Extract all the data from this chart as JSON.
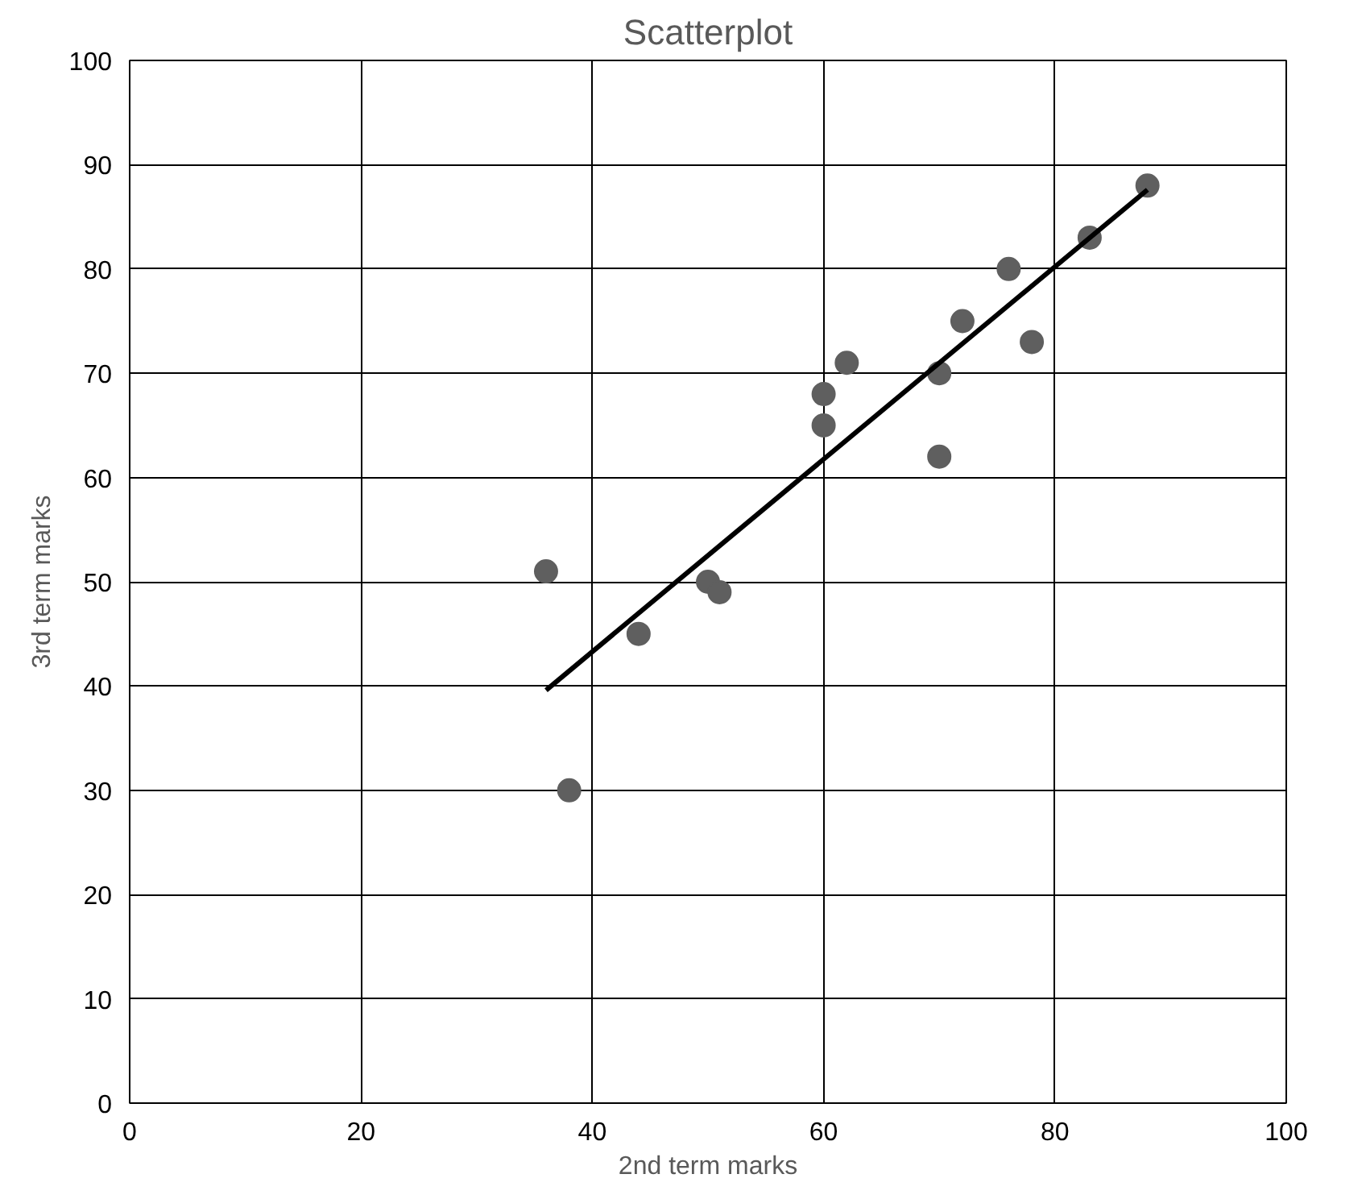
{
  "chart_data": {
    "type": "scatter",
    "title": "Scatterplot",
    "xlabel": "2nd term marks",
    "ylabel": "3rd term marks",
    "xlim": [
      0,
      100
    ],
    "ylim": [
      0,
      100
    ],
    "xticks": [
      0,
      20,
      40,
      60,
      80,
      100
    ],
    "yticks": [
      0,
      10,
      20,
      30,
      40,
      50,
      60,
      70,
      80,
      90,
      100
    ],
    "grid": true,
    "marker": "circle",
    "series": [
      {
        "color": "#5f5f5f",
        "x": [
          36,
          38,
          44,
          50,
          51,
          60,
          60,
          62,
          70,
          70,
          72,
          76,
          78,
          83,
          88
        ],
        "values": [
          51,
          30,
          45,
          50,
          49,
          68,
          65,
          71,
          70,
          62,
          75,
          80,
          73,
          83,
          88
        ]
      },
      {
        "type": "line",
        "marker": "none",
        "color": "#000000",
        "x": [
          36,
          88
        ],
        "values": [
          39.6,
          87.6
        ]
      }
    ]
  }
}
